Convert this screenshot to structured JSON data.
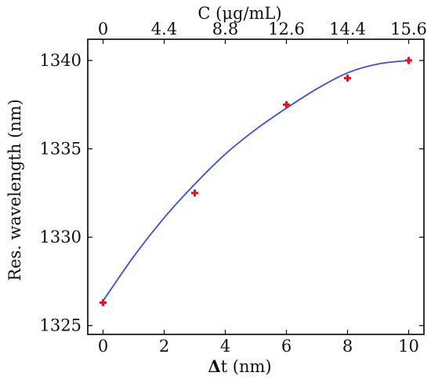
{
  "chart_data": {
    "type": "scatter",
    "xlabel_symbol": "Δ",
    "xlabel_rest": "t (nm)",
    "ylabel": "Res. wavelength (nm)",
    "x2label": "C (μg/mL)",
    "xlim": [
      -0.5,
      10.5
    ],
    "ylim": [
      1324.5,
      1341.2
    ],
    "xticks": [
      0,
      2,
      4,
      6,
      8,
      10
    ],
    "yticks": [
      1325,
      1330,
      1335,
      1340
    ],
    "x2ticks": [
      {
        "x": 0,
        "label": "0"
      },
      {
        "x": 2,
        "label": "4.4"
      },
      {
        "x": 4,
        "label": "8.8"
      },
      {
        "x": 6,
        "label": "12.6"
      },
      {
        "x": 8,
        "label": "14.4"
      },
      {
        "x": 10,
        "label": "15.6"
      }
    ],
    "series": [
      {
        "type": "scatter",
        "marker": "+",
        "color": "#e8121e",
        "x": [
          0,
          3,
          6,
          8,
          10
        ],
        "y": [
          1326.3,
          1332.5,
          1337.5,
          1339.0,
          1340.0
        ]
      },
      {
        "type": "line",
        "color": "#3b4fd8",
        "x": [
          0,
          1,
          2,
          3,
          4,
          5,
          6,
          7,
          8,
          9,
          10
        ],
        "y": [
          1326.4,
          1328.9,
          1331.1,
          1333.0,
          1334.7,
          1336.1,
          1337.3,
          1338.4,
          1339.3,
          1339.8,
          1340.0
        ]
      }
    ],
    "grid": false
  }
}
